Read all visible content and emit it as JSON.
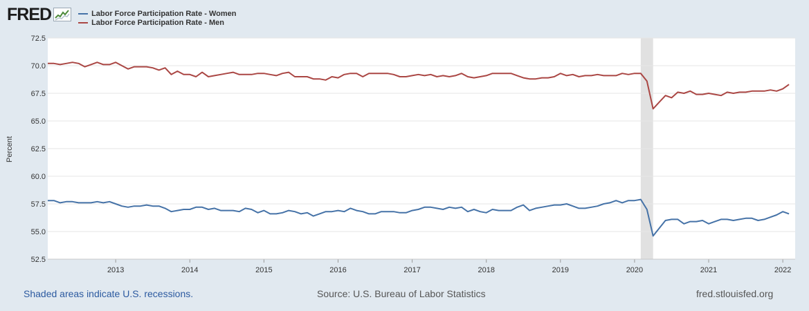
{
  "header": {
    "logo_text": "FRED",
    "logo_icon": "chart-line-icon"
  },
  "colors": {
    "women": "#4572a7",
    "men": "#aa4643",
    "recession": "#e1e1e1",
    "grid": "#e6e6e6"
  },
  "footer": {
    "recession_note": "Shaded areas indicate U.S. recessions.",
    "source": "Source: U.S. Bureau of Labor Statistics",
    "site": "fred.stlouisfed.org"
  },
  "chart_data": {
    "type": "line",
    "ylabel": "Percent",
    "xlabel": "",
    "ylim": [
      52.5,
      72.5
    ],
    "yticks": [
      "52.5",
      "55.0",
      "57.5",
      "60.0",
      "62.5",
      "65.0",
      "67.5",
      "70.0",
      "72.5"
    ],
    "xlim": [
      "2012-02",
      "2022-03"
    ],
    "xticks": [
      "2013",
      "2014",
      "2015",
      "2016",
      "2017",
      "2018",
      "2019",
      "2020",
      "2021",
      "2022"
    ],
    "grid": true,
    "legend_position": "top-left",
    "recessions": [
      {
        "start": "2020-02",
        "end": "2020-04"
      }
    ],
    "series": [
      {
        "name": "Labor Force Participation Rate - Women",
        "start": "2012-02",
        "frequency": "monthly",
        "values": [
          57.8,
          57.8,
          57.6,
          57.7,
          57.7,
          57.6,
          57.6,
          57.6,
          57.7,
          57.6,
          57.7,
          57.5,
          57.3,
          57.2,
          57.3,
          57.3,
          57.4,
          57.3,
          57.3,
          57.1,
          56.8,
          56.9,
          57.0,
          57.0,
          57.2,
          57.2,
          57.0,
          57.1,
          56.9,
          56.9,
          56.9,
          56.8,
          57.1,
          57.0,
          56.7,
          56.9,
          56.6,
          56.6,
          56.7,
          56.9,
          56.8,
          56.6,
          56.7,
          56.4,
          56.6,
          56.8,
          56.8,
          56.9,
          56.8,
          57.1,
          56.9,
          56.8,
          56.6,
          56.6,
          56.8,
          56.8,
          56.8,
          56.7,
          56.7,
          56.9,
          57.0,
          57.2,
          57.2,
          57.1,
          57.0,
          57.2,
          57.1,
          57.2,
          56.8,
          57.0,
          56.8,
          56.7,
          57.0,
          56.9,
          56.9,
          56.9,
          57.2,
          57.4,
          56.9,
          57.1,
          57.2,
          57.3,
          57.4,
          57.4,
          57.5,
          57.3,
          57.1,
          57.1,
          57.2,
          57.3,
          57.5,
          57.6,
          57.8,
          57.6,
          57.8,
          57.8,
          57.9,
          57.0,
          54.6,
          55.3,
          56.0,
          56.1,
          56.1,
          55.7,
          55.9,
          55.9,
          56.0,
          55.7,
          55.9,
          56.1,
          56.1,
          56.0,
          56.1,
          56.2,
          56.2,
          56.0,
          56.1,
          56.3,
          56.5,
          56.8,
          56.6
        ]
      },
      {
        "name": "Labor Force Participation Rate - Men",
        "start": "2012-02",
        "frequency": "monthly",
        "values": [
          70.2,
          70.2,
          70.1,
          70.2,
          70.3,
          70.2,
          69.9,
          70.1,
          70.3,
          70.1,
          70.1,
          70.3,
          70.0,
          69.7,
          69.9,
          69.9,
          69.9,
          69.8,
          69.6,
          69.8,
          69.2,
          69.5,
          69.2,
          69.2,
          69.0,
          69.4,
          69.0,
          69.1,
          69.2,
          69.3,
          69.4,
          69.2,
          69.2,
          69.2,
          69.3,
          69.3,
          69.2,
          69.1,
          69.3,
          69.4,
          69.0,
          69.0,
          69.0,
          68.8,
          68.8,
          68.7,
          69.0,
          68.9,
          69.2,
          69.3,
          69.3,
          69.0,
          69.3,
          69.3,
          69.3,
          69.3,
          69.2,
          69.0,
          69.0,
          69.1,
          69.2,
          69.1,
          69.2,
          69.0,
          69.1,
          69.0,
          69.1,
          69.3,
          69.0,
          68.9,
          69.0,
          69.1,
          69.3,
          69.3,
          69.3,
          69.3,
          69.1,
          68.9,
          68.8,
          68.8,
          68.9,
          68.9,
          69.0,
          69.3,
          69.1,
          69.2,
          69.0,
          69.1,
          69.1,
          69.2,
          69.1,
          69.1,
          69.1,
          69.3,
          69.2,
          69.3,
          69.3,
          68.6,
          66.1,
          66.7,
          67.3,
          67.1,
          67.6,
          67.5,
          67.7,
          67.4,
          67.4,
          67.5,
          67.4,
          67.3,
          67.6,
          67.5,
          67.6,
          67.6,
          67.7,
          67.7,
          67.7,
          67.8,
          67.7,
          67.9,
          68.3
        ]
      }
    ]
  }
}
